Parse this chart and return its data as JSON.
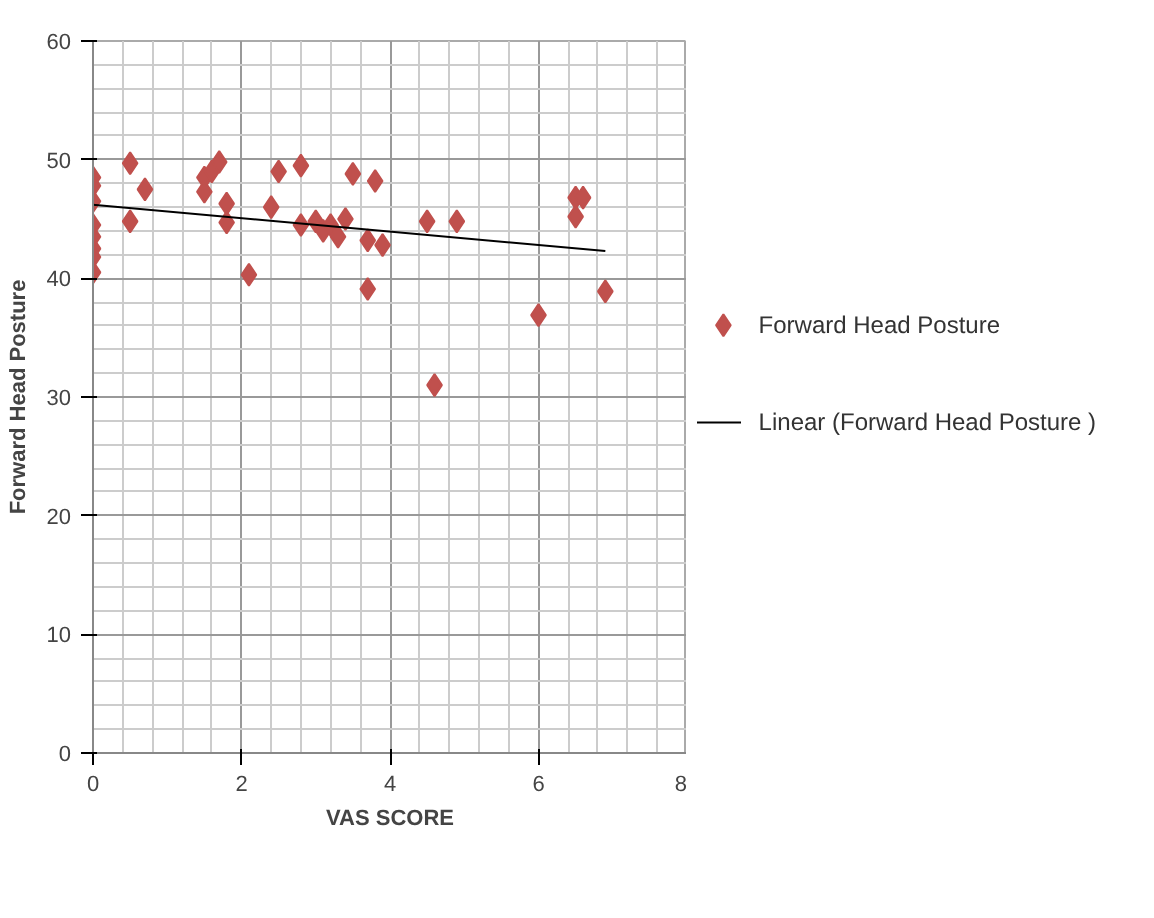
{
  "chart_data": {
    "type": "scatter",
    "xlabel": "VAS SCORE",
    "ylabel": "Forward Head Posture",
    "xlim": [
      0,
      8
    ],
    "ylim": [
      0,
      60
    ],
    "xticks": [
      0,
      2,
      4,
      6,
      8
    ],
    "yticks": [
      0,
      10,
      20,
      30,
      40,
      50,
      60
    ],
    "grid": true,
    "legend": "right",
    "series": [
      {
        "name": "Forward Head Posture",
        "color": "#c0504d",
        "marker": "diamond",
        "x": [
          0,
          0,
          0,
          0,
          0,
          0,
          0,
          0,
          0.5,
          0.5,
          0.7,
          1.5,
          1.5,
          1.6,
          1.7,
          1.8,
          1.8,
          2.1,
          2.4,
          2.5,
          2.8,
          2.8,
          3.0,
          3.1,
          3.2,
          3.3,
          3.4,
          3.5,
          3.7,
          3.7,
          3.8,
          3.9,
          4.5,
          4.6,
          4.9,
          6.0,
          6.5,
          6.6,
          6.5,
          6.9
        ],
        "values": [
          48.5,
          47.8,
          46.5,
          44.5,
          43.5,
          42.5,
          41.8,
          40.5,
          49.7,
          44.8,
          47.5,
          48.5,
          47.3,
          49,
          49.8,
          46.3,
          44.7,
          40.3,
          46,
          49,
          49.5,
          44.5,
          44.8,
          44,
          44.5,
          43.5,
          45,
          48.8,
          43.2,
          39.1,
          48.2,
          42.8,
          44.8,
          31,
          44.8,
          36.9,
          46.8,
          46.8,
          45.2,
          38.9
        ]
      },
      {
        "name": "Linear (Forward Head Posture )",
        "color": "#000000",
        "type": "line",
        "x": [
          0,
          6.9
        ],
        "values": [
          46.2,
          42.3
        ]
      }
    ]
  }
}
